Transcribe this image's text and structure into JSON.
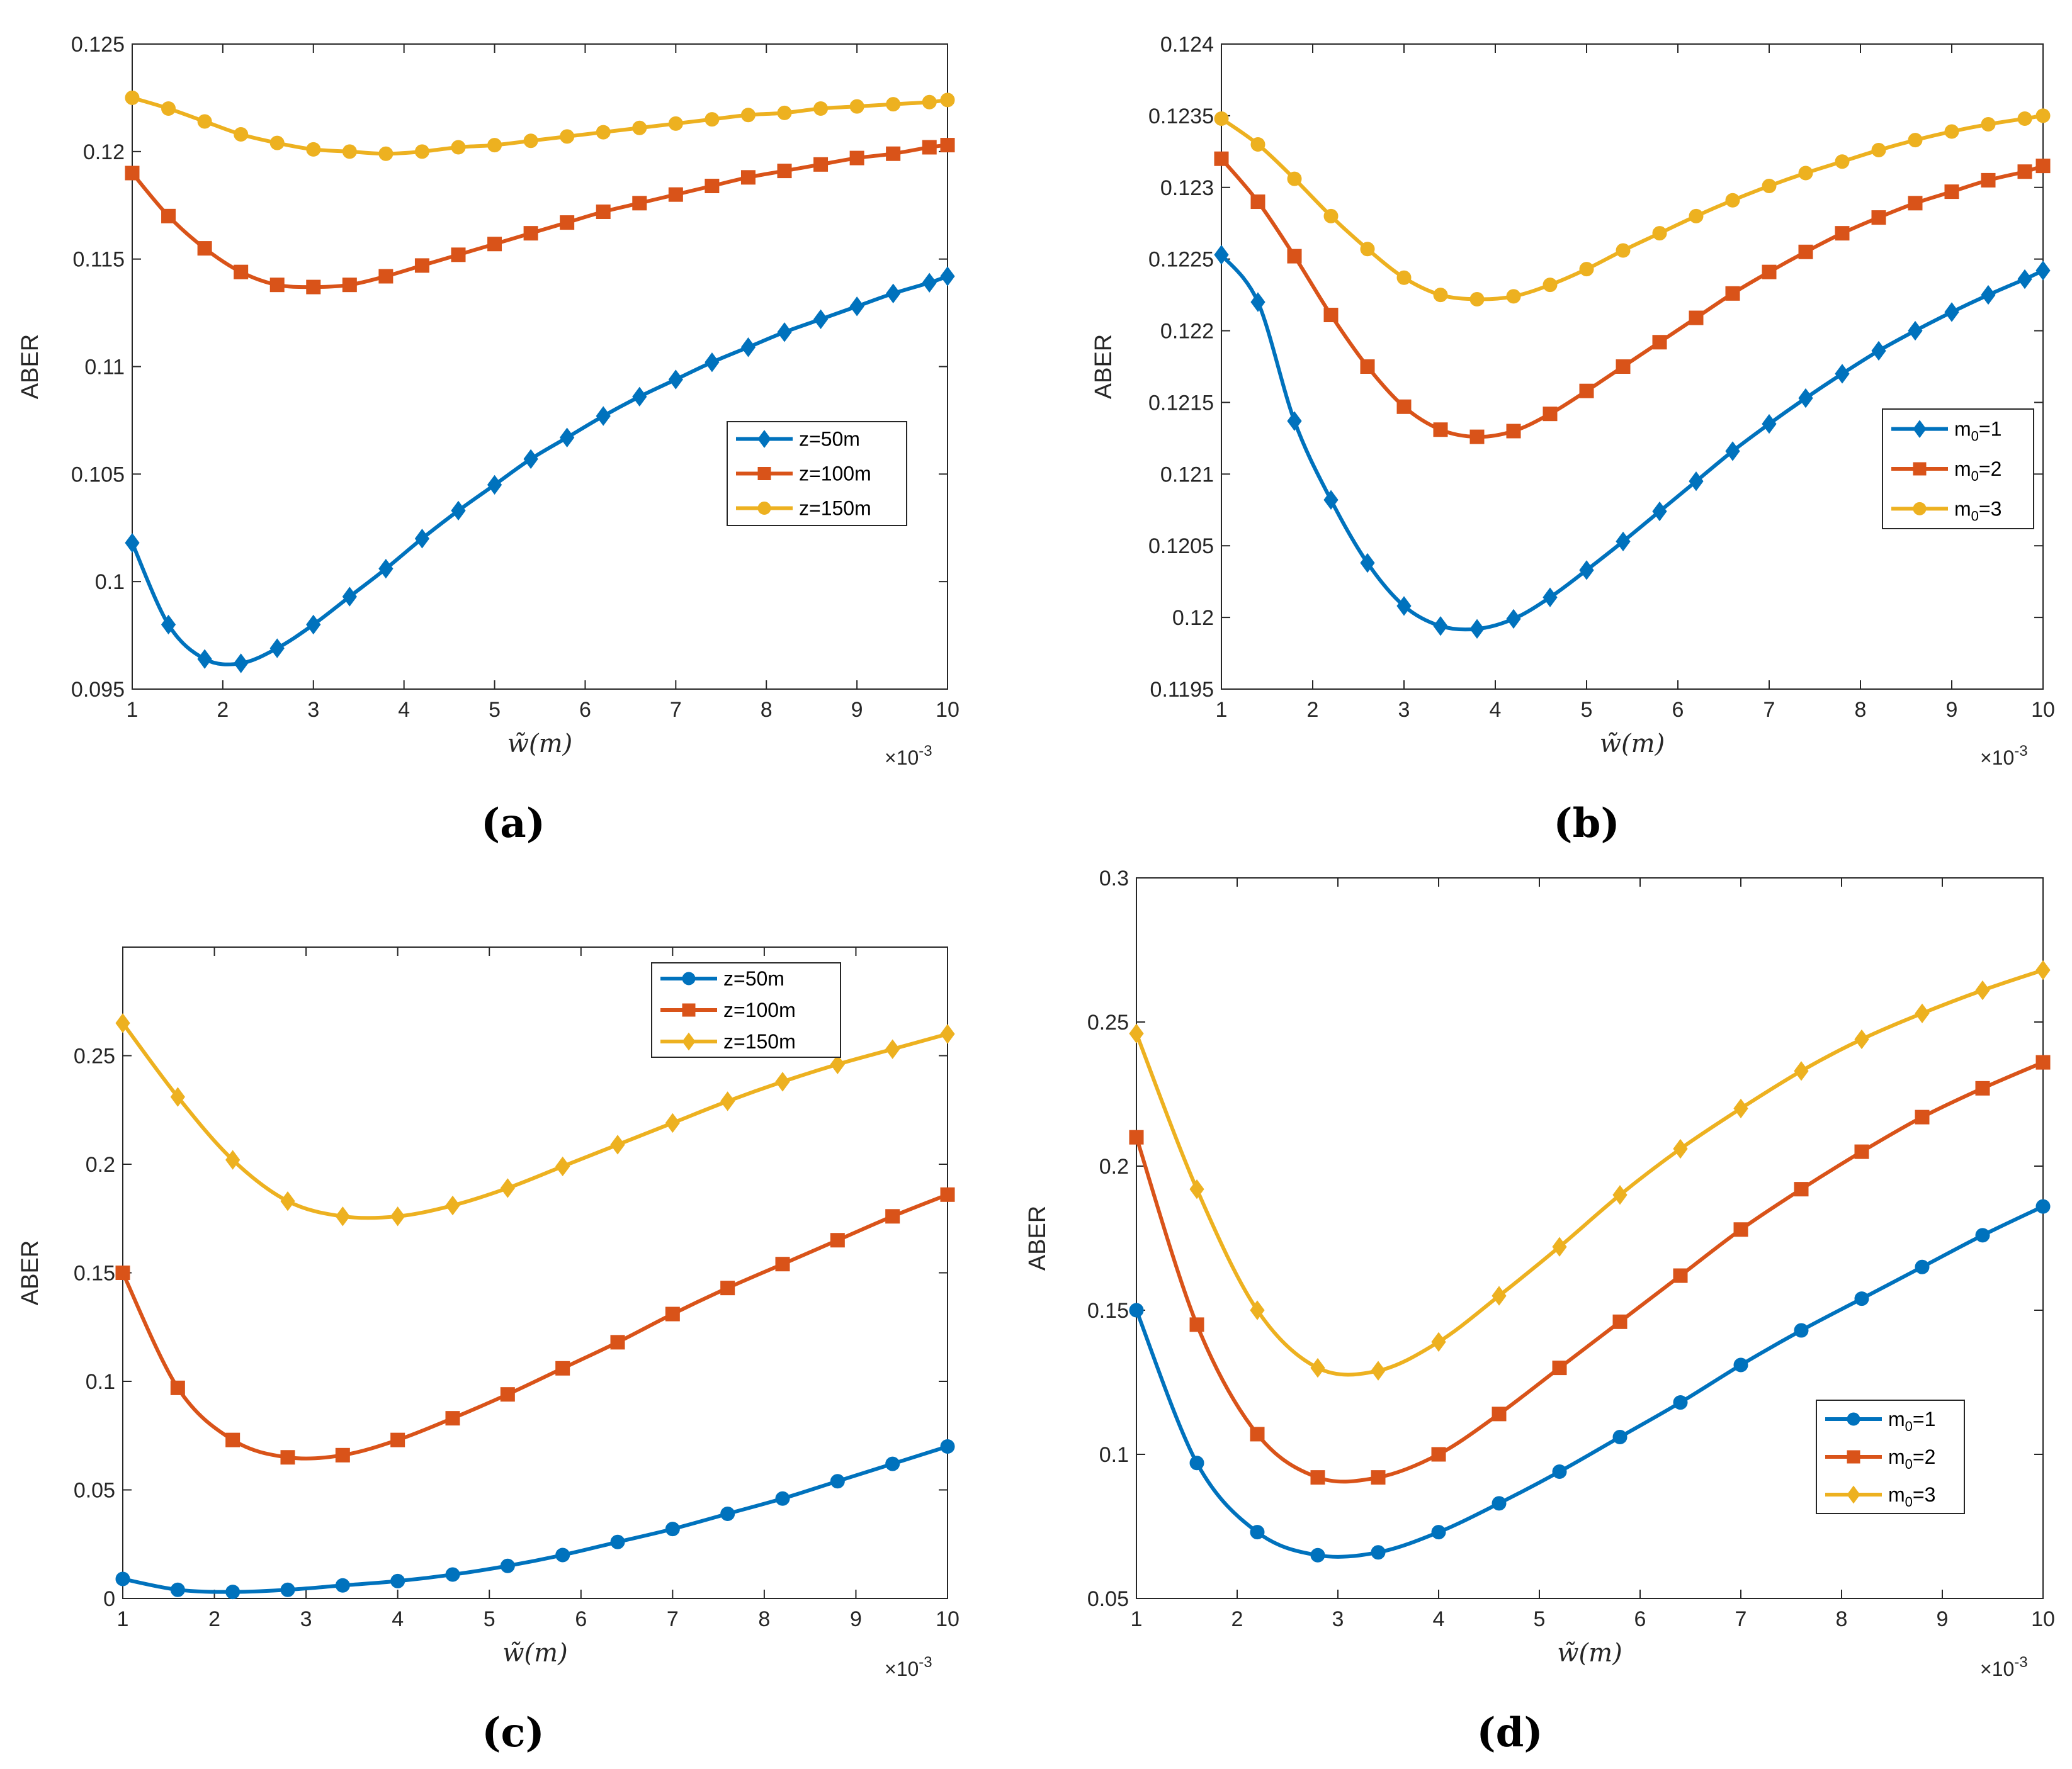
{
  "colors": {
    "blue": "#0072BD",
    "orange": "#D95319",
    "yellow": "#EDB120",
    "axis": "#262626"
  },
  "chart_data": [
    {
      "type": "line",
      "panel_label": "(a)",
      "xlabel": "w̃(m)",
      "ylabel": "ABER",
      "x_exponent": "×10",
      "x_exponent_power": "-3",
      "xlim": [
        1,
        10
      ],
      "ylim": [
        0.095,
        0.125
      ],
      "xticks": [
        1,
        2,
        3,
        4,
        5,
        6,
        7,
        8,
        9,
        10
      ],
      "xtick_labels": [
        "1",
        "2",
        "3",
        "4",
        "5",
        "6",
        "7",
        "8",
        "9",
        "10"
      ],
      "yticks": [
        0.095,
        0.1,
        0.105,
        0.11,
        0.115,
        0.12,
        0.125
      ],
      "ytick_labels": [
        "0.095",
        "0.1",
        "0.105",
        "0.11",
        "0.115",
        "0.12",
        "0.125"
      ],
      "legend_position": "center-right",
      "series": [
        {
          "name": "z=50m",
          "legend_main": "z=50m",
          "legend_sub": "",
          "legend_tail": "",
          "color": "#0072BD",
          "marker": "diamond",
          "x": [
            1,
            1.4,
            1.8,
            2.2,
            2.6,
            3,
            3.4,
            3.8,
            4.2,
            4.6,
            5,
            5.4,
            5.8,
            6.2,
            6.6,
            7,
            7.4,
            7.8,
            8.2,
            8.6,
            9,
            9.4,
            9.8,
            10
          ],
          "values": [
            0.1018,
            0.098,
            0.0964,
            0.0962,
            0.0969,
            0.098,
            0.0993,
            0.1006,
            0.102,
            0.1033,
            0.1045,
            0.1057,
            0.1067,
            0.1077,
            0.1086,
            0.1094,
            0.1102,
            0.1109,
            0.1116,
            0.1122,
            0.1128,
            0.1134,
            0.1139,
            0.1142
          ]
        },
        {
          "name": "z=100m",
          "legend_main": "z=100m",
          "legend_sub": "",
          "legend_tail": "",
          "color": "#D95319",
          "marker": "square",
          "x": [
            1,
            1.4,
            1.8,
            2.2,
            2.6,
            3,
            3.4,
            3.8,
            4.2,
            4.6,
            5,
            5.4,
            5.8,
            6.2,
            6.6,
            7,
            7.4,
            7.8,
            8.2,
            8.6,
            9,
            9.4,
            9.8,
            10
          ],
          "values": [
            0.119,
            0.117,
            0.1155,
            0.1144,
            0.1138,
            0.1137,
            0.1138,
            0.1142,
            0.1147,
            0.1152,
            0.1157,
            0.1162,
            0.1167,
            0.1172,
            0.1176,
            0.118,
            0.1184,
            0.1188,
            0.1191,
            0.1194,
            0.1197,
            0.1199,
            0.1202,
            0.1203
          ]
        },
        {
          "name": "z=150m",
          "legend_main": "z=150m",
          "legend_sub": "",
          "legend_tail": "",
          "color": "#EDB120",
          "marker": "circle",
          "x": [
            1,
            1.4,
            1.8,
            2.2,
            2.6,
            3,
            3.4,
            3.8,
            4.2,
            4.6,
            5,
            5.4,
            5.8,
            6.2,
            6.6,
            7,
            7.4,
            7.8,
            8.2,
            8.6,
            9,
            9.4,
            9.8,
            10
          ],
          "values": [
            0.1225,
            0.122,
            0.1214,
            0.1208,
            0.1204,
            0.1201,
            0.12,
            0.1199,
            0.12,
            0.1202,
            0.1203,
            0.1205,
            0.1207,
            0.1209,
            0.1211,
            0.1213,
            0.1215,
            0.1217,
            0.1218,
            0.122,
            0.1221,
            0.1222,
            0.1223,
            0.1224
          ]
        }
      ]
    },
    {
      "type": "line",
      "panel_label": "(b)",
      "xlabel": "w̃(m)",
      "ylabel": "ABER",
      "x_exponent": "×10",
      "x_exponent_power": "-3",
      "xlim": [
        1,
        10
      ],
      "ylim": [
        0.1195,
        0.124
      ],
      "xticks": [
        1,
        2,
        3,
        4,
        5,
        6,
        7,
        8,
        9,
        10
      ],
      "xtick_labels": [
        "1",
        "2",
        "3",
        "4",
        "5",
        "6",
        "7",
        "8",
        "9",
        "10"
      ],
      "yticks": [
        0.1195,
        0.12,
        0.1205,
        0.121,
        0.1215,
        0.122,
        0.1225,
        0.123,
        0.1235,
        0.124
      ],
      "ytick_labels": [
        "0.1195",
        "0.12",
        "0.1205",
        "0.121",
        "0.1215",
        "0.122",
        "0.1225",
        "0.123",
        "0.1235",
        "0.124"
      ],
      "legend_position": "right",
      "series": [
        {
          "name": "m0=1",
          "legend_main": "m",
          "legend_sub": "0",
          "legend_tail": "=1",
          "color": "#0072BD",
          "marker": "diamond",
          "x": [
            1,
            1.4,
            1.8,
            2.2,
            2.6,
            3,
            3.4,
            3.8,
            4.2,
            4.6,
            5,
            5.4,
            5.8,
            6.2,
            6.6,
            7,
            7.4,
            7.8,
            8.2,
            8.6,
            9,
            9.4,
            9.8,
            10
          ],
          "values": [
            0.12253,
            0.1222,
            0.12137,
            0.12082,
            0.12038,
            0.12008,
            0.11994,
            0.11992,
            0.11999,
            0.12014,
            0.12033,
            0.12053,
            0.12074,
            0.12095,
            0.12116,
            0.12135,
            0.12153,
            0.1217,
            0.12186,
            0.122,
            0.12213,
            0.12225,
            0.12236,
            0.12242
          ]
        },
        {
          "name": "m0=2",
          "legend_main": "m",
          "legend_sub": "0",
          "legend_tail": "=2",
          "color": "#D95319",
          "marker": "square",
          "x": [
            1,
            1.4,
            1.8,
            2.2,
            2.6,
            3,
            3.4,
            3.8,
            4.2,
            4.6,
            5,
            5.4,
            5.8,
            6.2,
            6.6,
            7,
            7.4,
            7.8,
            8.2,
            8.6,
            9,
            9.4,
            9.8,
            10
          ],
          "values": [
            0.1232,
            0.1229,
            0.12252,
            0.12211,
            0.12175,
            0.12147,
            0.12131,
            0.12126,
            0.1213,
            0.12142,
            0.12158,
            0.12175,
            0.12192,
            0.12209,
            0.12226,
            0.12241,
            0.12255,
            0.12268,
            0.12279,
            0.12289,
            0.12297,
            0.12305,
            0.12311,
            0.12315
          ]
        },
        {
          "name": "m0=3",
          "legend_main": "m",
          "legend_sub": "0",
          "legend_tail": "=3",
          "color": "#EDB120",
          "marker": "circle",
          "x": [
            1,
            1.4,
            1.8,
            2.2,
            2.6,
            3,
            3.4,
            3.8,
            4.2,
            4.6,
            5,
            5.4,
            5.8,
            6.2,
            6.6,
            7,
            7.4,
            7.8,
            8.2,
            8.6,
            9,
            9.4,
            9.8,
            10
          ],
          "values": [
            0.12348,
            0.1233,
            0.12306,
            0.1228,
            0.12257,
            0.12237,
            0.12225,
            0.12222,
            0.12224,
            0.12232,
            0.12243,
            0.12256,
            0.12268,
            0.1228,
            0.12291,
            0.12301,
            0.1231,
            0.12318,
            0.12326,
            0.12333,
            0.12339,
            0.12344,
            0.12348,
            0.1235
          ]
        }
      ]
    },
    {
      "type": "line",
      "panel_label": "(c)",
      "xlabel": "w̃(m)",
      "ylabel": "ABER",
      "x_exponent": "×10",
      "x_exponent_power": "-3",
      "xlim": [
        1,
        10
      ],
      "ylim": [
        0,
        0.3
      ],
      "xticks": [
        1,
        2,
        3,
        4,
        5,
        6,
        7,
        8,
        9,
        10
      ],
      "xtick_labels": [
        "1",
        "2",
        "3",
        "4",
        "5",
        "6",
        "7",
        "8",
        "9",
        "10"
      ],
      "yticks": [
        0,
        0.05,
        0.1,
        0.15,
        0.2,
        0.25
      ],
      "ytick_labels": [
        "0",
        "0.05",
        "0.1",
        "0.15",
        "0.2",
        "0.25"
      ],
      "legend_position": "top-right",
      "series": [
        {
          "name": "z=50m",
          "legend_main": "z=50m",
          "legend_sub": "",
          "legend_tail": "",
          "color": "#0072BD",
          "marker": "circle",
          "x": [
            1,
            1.6,
            2.2,
            2.8,
            3.4,
            4,
            4.6,
            5.2,
            5.8,
            6.4,
            7,
            7.6,
            8.2,
            8.8,
            9.4,
            10
          ],
          "values": [
            0.009,
            0.004,
            0.003,
            0.004,
            0.006,
            0.008,
            0.011,
            0.015,
            0.02,
            0.026,
            0.032,
            0.039,
            0.046,
            0.054,
            0.062,
            0.07
          ]
        },
        {
          "name": "z=100m",
          "legend_main": "z=100m",
          "legend_sub": "",
          "legend_tail": "",
          "color": "#D95319",
          "marker": "square",
          "x": [
            1,
            1.6,
            2.2,
            2.8,
            3.4,
            4,
            4.6,
            5.2,
            5.8,
            6.4,
            7,
            7.6,
            8.2,
            8.8,
            9.4,
            10
          ],
          "values": [
            0.15,
            0.097,
            0.073,
            0.065,
            0.066,
            0.073,
            0.083,
            0.094,
            0.106,
            0.118,
            0.131,
            0.143,
            0.154,
            0.165,
            0.176,
            0.186
          ]
        },
        {
          "name": "z=150m",
          "legend_main": "z=150m",
          "legend_sub": "",
          "legend_tail": "",
          "color": "#EDB120",
          "marker": "diamond",
          "x": [
            1,
            1.6,
            2.2,
            2.8,
            3.4,
            4,
            4.6,
            5.2,
            5.8,
            6.4,
            7,
            7.6,
            8.2,
            8.8,
            9.4,
            10
          ],
          "values": [
            0.265,
            0.231,
            0.202,
            0.183,
            0.176,
            0.176,
            0.181,
            0.189,
            0.199,
            0.209,
            0.219,
            0.229,
            0.238,
            0.246,
            0.253,
            0.26
          ]
        }
      ]
    },
    {
      "type": "line",
      "panel_label": "(d)",
      "xlabel": "w̃(m)",
      "ylabel": "ABER",
      "x_exponent": "×10",
      "x_exponent_power": "-3",
      "xlim": [
        1,
        10
      ],
      "ylim": [
        0.05,
        0.3
      ],
      "xticks": [
        1,
        2,
        3,
        4,
        5,
        6,
        7,
        8,
        9,
        10
      ],
      "xtick_labels": [
        "1",
        "2",
        "3",
        "4",
        "5",
        "6",
        "7",
        "8",
        "9",
        "10"
      ],
      "yticks": [
        0.05,
        0.1,
        0.15,
        0.2,
        0.25,
        0.3
      ],
      "ytick_labels": [
        "0.05",
        "0.1",
        "0.15",
        "0.2",
        "0.25",
        "0.3"
      ],
      "legend_position": "bottom-right",
      "series": [
        {
          "name": "m0=1",
          "legend_main": "m",
          "legend_sub": "0",
          "legend_tail": "=1",
          "color": "#0072BD",
          "marker": "circle",
          "x": [
            1,
            1.6,
            2.2,
            2.8,
            3.4,
            4,
            4.6,
            5.2,
            5.8,
            6.4,
            7,
            7.6,
            8.2,
            8.8,
            9.4,
            10
          ],
          "values": [
            0.15,
            0.097,
            0.073,
            0.065,
            0.066,
            0.073,
            0.083,
            0.094,
            0.106,
            0.118,
            0.131,
            0.143,
            0.154,
            0.165,
            0.176,
            0.186
          ]
        },
        {
          "name": "m0=2",
          "legend_main": "m",
          "legend_sub": "0",
          "legend_tail": "=2",
          "color": "#D95319",
          "marker": "square",
          "x": [
            1,
            1.6,
            2.2,
            2.8,
            3.4,
            4,
            4.6,
            5.2,
            5.8,
            6.4,
            7,
            7.6,
            8.2,
            8.8,
            9.4,
            10
          ],
          "values": [
            0.21,
            0.145,
            0.107,
            0.092,
            0.092,
            0.1,
            0.114,
            0.13,
            0.146,
            0.162,
            0.178,
            0.192,
            0.205,
            0.217,
            0.227,
            0.236
          ]
        },
        {
          "name": "m0=3",
          "legend_main": "m",
          "legend_sub": "0",
          "legend_tail": "=3",
          "color": "#EDB120",
          "marker": "diamond",
          "x": [
            1,
            1.6,
            2.2,
            2.8,
            3.4,
            4,
            4.6,
            5.2,
            5.8,
            6.4,
            7,
            7.6,
            8.2,
            8.8,
            9.4,
            10
          ],
          "values": [
            0.246,
            0.192,
            0.15,
            0.13,
            0.129,
            0.139,
            0.155,
            0.172,
            0.19,
            0.206,
            0.22,
            0.233,
            0.244,
            0.253,
            0.261,
            0.268
          ]
        }
      ]
    }
  ]
}
